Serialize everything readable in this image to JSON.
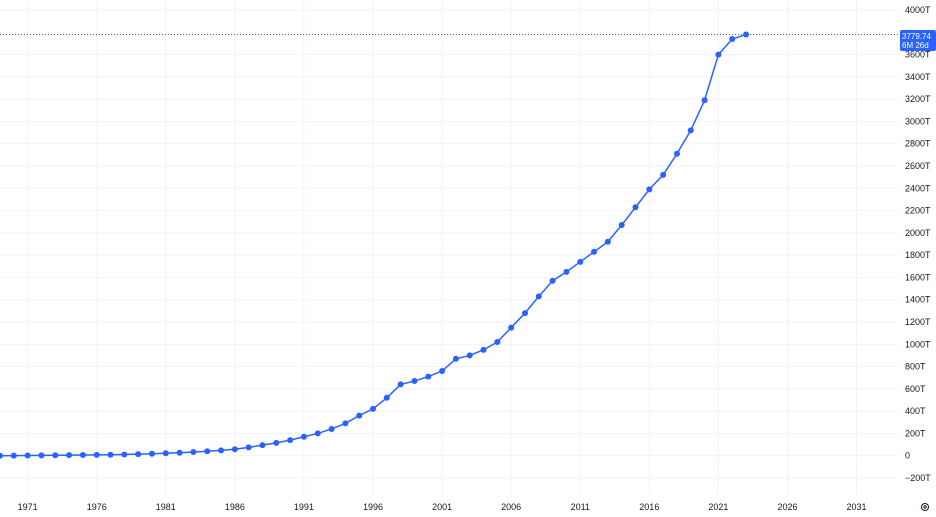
{
  "chart_data": {
    "type": "line",
    "title": "",
    "xlabel": "",
    "ylabel": "",
    "unit_suffix": "T",
    "xlim": [
      1969,
      2034
    ],
    "ylim": [
      -260,
      4000
    ],
    "y_ticks": [
      -200,
      0,
      200,
      400,
      600,
      800,
      1000,
      1200,
      1400,
      1600,
      1800,
      2000,
      2200,
      2400,
      2600,
      2800,
      3000,
      3200,
      3400,
      3600,
      4000
    ],
    "y_tick_labels": [
      "−200T",
      "0",
      "200T",
      "400T",
      "600T",
      "800T",
      "1000T",
      "1200T",
      "1400T",
      "1600T",
      "1800T",
      "2000T",
      "2200T",
      "2400T",
      "2600T",
      "2800T",
      "3000T",
      "3200T",
      "3400T",
      "3600T",
      "4000T"
    ],
    "x_ticks": [
      1971,
      1976,
      1981,
      1986,
      1991,
      1996,
      2001,
      2006,
      2011,
      2016,
      2021,
      2026,
      2031
    ],
    "x_tick_labels": [
      "1971",
      "1976",
      "1981",
      "1986",
      "1991",
      "1996",
      "2001",
      "2006",
      "2011",
      "2016",
      "2021",
      "2026",
      "2031"
    ],
    "grid": true,
    "series": [
      {
        "color": "#2962ff",
        "x": [
          1969,
          1970,
          1971,
          1972,
          1973,
          1974,
          1975,
          1976,
          1977,
          1978,
          1979,
          1980,
          1981,
          1982,
          1983,
          1984,
          1985,
          1986,
          1987,
          1988,
          1989,
          1990,
          1991,
          1992,
          1993,
          1994,
          1995,
          1996,
          1997,
          1998,
          1999,
          2000,
          2001,
          2002,
          2003,
          2004,
          2005,
          2006,
          2007,
          2008,
          2009,
          2010,
          2011,
          2012,
          2013,
          2014,
          2015,
          2016,
          2017,
          2018,
          2019,
          2020,
          2021,
          2022,
          2023
        ],
        "y": [
          0,
          1,
          2,
          3,
          4,
          5,
          6,
          7,
          9,
          11,
          14,
          18,
          22,
          27,
          33,
          40,
          48,
          58,
          75,
          95,
          115,
          140,
          170,
          200,
          240,
          290,
          360,
          420,
          520,
          640,
          670,
          710,
          760,
          870,
          900,
          950,
          1020,
          1150,
          1280,
          1430,
          1570,
          1650,
          1740,
          1830,
          1920,
          2070,
          2230,
          2390,
          2520,
          2710,
          2920,
          3190,
          3600,
          3740,
          3779.74
        ]
      }
    ],
    "last_value_label": "3779.74",
    "last_value_sublabel": "6M 26d",
    "badge_color": "#2962ff"
  },
  "icons": {
    "settings": "settings-icon"
  }
}
